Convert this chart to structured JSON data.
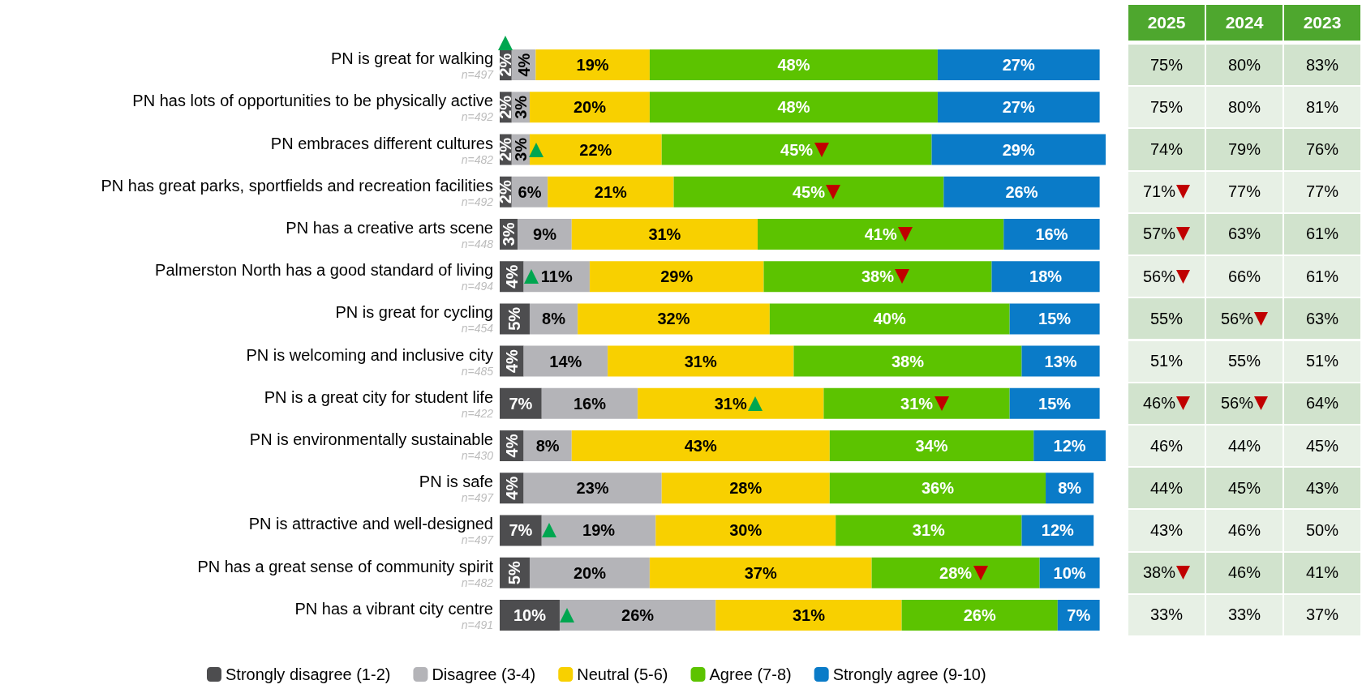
{
  "chart_data": [
    {
      "type": "bar",
      "orientation": "horizontal",
      "stacked": true,
      "legend": "bottom",
      "categories": [
        "PN is great for walking",
        "PN has lots of opportunities to be physically active",
        "PN embraces different cultures",
        "PN has great parks, sportfields and recreation facilities",
        "PN has a creative arts scene",
        "Palmerston North has a good standard of living",
        "PN is great for cycling",
        "PN is welcoming and inclusive city",
        "PN is a great city for student life",
        "PN is environmentally sustainable",
        "PN is safe",
        "PN is attractive and well-designed",
        "PN has a great sense of community spirit",
        "PN has a vibrant city centre"
      ],
      "series": [
        {
          "name": "Strongly disagree (1-2)",
          "color": "#4d4d4f",
          "values": [
            2,
            2,
            2,
            2,
            3,
            4,
            5,
            4,
            7,
            4,
            4,
            7,
            5,
            10
          ],
          "value_labels": [
            "2%",
            "2%",
            "2%",
            "2%",
            "3%",
            "4%",
            "5%",
            "4%",
            "7%",
            "4%",
            "4%",
            "7%",
            "5%",
            "10%"
          ]
        },
        {
          "name": "Disagree (3-4)",
          "color": "#b4b4b8",
          "values": [
            4,
            3,
            3,
            6,
            9,
            11,
            8,
            14,
            16,
            8,
            23,
            19,
            20,
            26
          ],
          "value_labels": [
            "4%",
            "3%",
            "3%",
            "6%",
            "9%",
            "11%",
            "8%",
            "14%",
            "16%",
            "8%",
            "23%",
            "19%",
            "20%",
            "26%"
          ]
        },
        {
          "name": "Neutral (5-6)",
          "color": "#f8d000",
          "values": [
            19,
            20,
            22,
            21,
            31,
            29,
            32,
            31,
            31,
            43,
            28,
            30,
            37,
            31
          ],
          "value_labels": [
            "19%",
            "20%",
            "22%",
            "21%",
            "31%",
            "29%",
            "32%",
            "31%",
            "31%",
            "43%",
            "28%",
            "30%",
            "37%",
            "31%"
          ]
        },
        {
          "name": "Agree (7-8)",
          "color": "#5cc300",
          "values": [
            48,
            48,
            45,
            45,
            41,
            38,
            40,
            38,
            31,
            34,
            36,
            31,
            28,
            26
          ],
          "value_labels": [
            "48%",
            "48%",
            "45%",
            "45%",
            "41%",
            "38%",
            "40%",
            "38%",
            "31%",
            "34%",
            "36%",
            "31%",
            "28%",
            "26%"
          ]
        },
        {
          "name": "Strongly agree (9-10)",
          "color": "#0a7bc8",
          "values": [
            27,
            27,
            29,
            26,
            16,
            18,
            15,
            13,
            15,
            12,
            8,
            12,
            10,
            7
          ],
          "value_labels": [
            "27%",
            "27%",
            "29%",
            "26%",
            "16%",
            "18%",
            "15%",
            "13%",
            "15%",
            "12%",
            "8%",
            "12%",
            "10%",
            "7%"
          ]
        }
      ],
      "annotations": [
        "n=497",
        "n=492",
        "n=482",
        "n=492",
        "n=448",
        "n=494",
        "n=454",
        "n=485",
        "n=422",
        "n=430",
        "n=497",
        "n=497",
        "n=482",
        "n=491"
      ]
    },
    {
      "type": "other",
      "categories": [
        "2025",
        "2024",
        "2023"
      ],
      "cell_labels": [
        [
          "75%",
          "80%",
          "83%"
        ],
        [
          "75%",
          "80%",
          "81%"
        ],
        [
          "74%",
          "79%",
          "76%"
        ],
        [
          "71%",
          "77%",
          "77%"
        ],
        [
          "57%",
          "63%",
          "61%"
        ],
        [
          "56%",
          "66%",
          "61%"
        ],
        [
          "55%",
          "56%",
          "63%"
        ],
        [
          "51%",
          "55%",
          "51%"
        ],
        [
          "46%",
          "56%",
          "64%"
        ],
        [
          "46%",
          "44%",
          "45%"
        ],
        [
          "44%",
          "45%",
          "43%"
        ],
        [
          "43%",
          "46%",
          "50%"
        ],
        [
          "38%",
          "46%",
          "41%"
        ],
        [
          "33%",
          "33%",
          "37%"
        ]
      ]
    }
  ]
}
